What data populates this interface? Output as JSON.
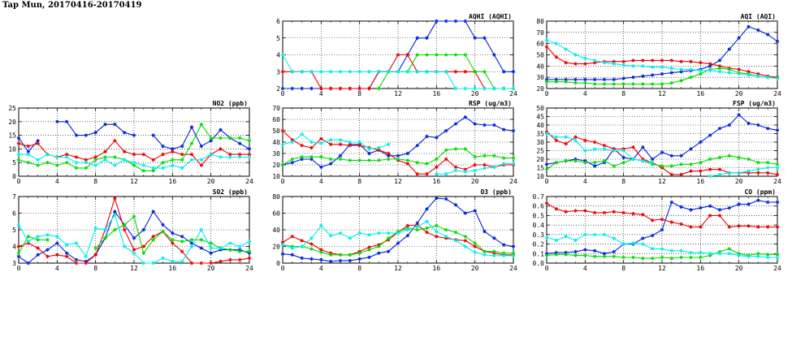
{
  "page": {
    "title": "Tap Mun, 20170416-20170419"
  },
  "colors": {
    "blue": "#0022dd",
    "red": "#ee0000",
    "green": "#00dd00",
    "cyan": "#00eeee",
    "grid": "#000000"
  },
  "chart_data": [
    {
      "id": "aqhi",
      "type": "line",
      "title": "AQHI (AQHI)",
      "xlim": [
        0,
        24
      ],
      "ylim": [
        2,
        6
      ],
      "xticks": [
        "0",
        "4",
        "8",
        "12",
        "16",
        "20",
        "24"
      ],
      "yticks": [
        "2",
        "3",
        "4",
        "5",
        "6"
      ],
      "grid": true,
      "series": [
        {
          "color": "blue",
          "values": [
            2,
            2,
            2,
            2,
            2,
            2,
            2,
            2,
            2,
            2,
            3,
            3,
            3,
            4,
            5,
            5,
            6,
            6,
            6,
            6,
            5,
            5,
            4,
            3,
            3
          ]
        },
        {
          "color": "red",
          "values": [
            3,
            3,
            3,
            3,
            2,
            2,
            2,
            2,
            2,
            2,
            3,
            3,
            4,
            4,
            3,
            3,
            3,
            3,
            3,
            3,
            3,
            2,
            2,
            2,
            2
          ]
        },
        {
          "color": "green",
          "values": [
            null,
            null,
            null,
            null,
            null,
            null,
            null,
            null,
            null,
            null,
            2,
            3,
            3,
            3,
            4,
            4,
            4,
            4,
            4,
            4,
            3,
            3,
            2,
            2,
            2
          ]
        },
        {
          "color": "cyan",
          "values": [
            4,
            3,
            3,
            3,
            3,
            3,
            3,
            3,
            3,
            3,
            3,
            3,
            3,
            3,
            3,
            3,
            3,
            3,
            2,
            2,
            2,
            2,
            2,
            2,
            2
          ]
        }
      ]
    },
    {
      "id": "aqi",
      "type": "line",
      "title": "AQI (AQI)",
      "xlim": [
        0,
        24
      ],
      "ylim": [
        20,
        80
      ],
      "xticks": [
        "0",
        "4",
        "8",
        "12",
        "16",
        "20",
        "24"
      ],
      "yticks": [
        "20",
        "30",
        "40",
        "50",
        "60",
        "70",
        "80"
      ],
      "grid": true,
      "series": [
        {
          "color": "blue",
          "values": [
            28,
            28,
            28,
            28,
            28,
            28,
            28,
            28,
            29,
            30,
            31,
            32,
            33,
            34,
            35,
            36,
            37,
            40,
            45,
            55,
            65,
            75,
            72,
            68,
            62
          ]
        },
        {
          "color": "red",
          "values": [
            57,
            48,
            43,
            42,
            42,
            43,
            44,
            44,
            44,
            45,
            45,
            45,
            45,
            45,
            44,
            44,
            43,
            42,
            40,
            38,
            37,
            35,
            33,
            31,
            30
          ]
        },
        {
          "color": "green",
          "values": [
            26,
            26,
            26,
            25,
            25,
            24,
            24,
            24,
            24,
            24,
            24,
            24,
            24,
            25,
            27,
            30,
            33,
            37,
            38,
            37,
            34,
            33,
            31,
            30,
            29
          ]
        },
        {
          "color": "cyan",
          "values": [
            63,
            60,
            55,
            50,
            47,
            45,
            43,
            42,
            41,
            40,
            40,
            39,
            39,
            38,
            37,
            37,
            36,
            36,
            35,
            34,
            33,
            32,
            31,
            30,
            29
          ]
        }
      ]
    },
    {
      "id": "no2",
      "type": "line",
      "title": "NO2 (ppb)",
      "xlim": [
        0,
        24
      ],
      "ylim": [
        0,
        25
      ],
      "xticks": [
        "0",
        "4",
        "8",
        "12",
        "16",
        "20",
        "24"
      ],
      "yticks": [
        "0",
        "5",
        "10",
        "15",
        "20",
        "25"
      ],
      "grid": true,
      "series": [
        {
          "color": "blue",
          "values": [
            14,
            9,
            13,
            null,
            20,
            20,
            15,
            15,
            16,
            19,
            19,
            16,
            15,
            null,
            15,
            11,
            10,
            11,
            18,
            11,
            13,
            17,
            14,
            12,
            10
          ]
        },
        {
          "color": "red",
          "values": [
            12,
            11,
            12,
            8,
            7,
            8,
            7,
            6,
            7,
            9,
            13,
            9,
            8,
            8,
            6,
            8,
            9,
            8,
            8,
            4,
            8,
            10,
            8,
            8,
            8
          ]
        },
        {
          "color": "green",
          "values": [
            6,
            5,
            4,
            5,
            4,
            5,
            3,
            3,
            6,
            7,
            7,
            6,
            4,
            2,
            2,
            5,
            6,
            6,
            12,
            19,
            14,
            14,
            14,
            14,
            13
          ]
        },
        {
          "color": "cyan",
          "values": [
            8,
            8,
            6,
            8,
            7,
            7,
            5,
            5,
            4,
            6,
            4,
            6,
            5,
            4,
            3,
            3,
            4,
            3,
            6,
            6,
            8,
            7,
            7,
            7,
            7
          ]
        }
      ]
    },
    {
      "id": "rsp",
      "type": "line",
      "title": "RSP (ug/m3)",
      "xlim": [
        0,
        24
      ],
      "ylim": [
        10,
        70
      ],
      "xticks": [
        "0",
        "4",
        "8",
        "12",
        "16",
        "20",
        "24"
      ],
      "yticks": [
        "10",
        "20",
        "30",
        "40",
        "50",
        "60",
        "70"
      ],
      "grid": true,
      "series": [
        {
          "color": "blue",
          "values": [
            20,
            22,
            25,
            25,
            18,
            21,
            28,
            38,
            38,
            30,
            33,
            28,
            28,
            30,
            37,
            45,
            44,
            50,
            56,
            62,
            56,
            55,
            55,
            51,
            50
          ]
        },
        {
          "color": "red",
          "values": [
            50,
            42,
            37,
            35,
            43,
            38,
            38,
            37,
            37,
            35,
            33,
            30,
            24,
            21,
            12,
            12,
            18,
            25,
            18,
            16,
            20,
            20,
            18,
            20,
            20
          ]
        },
        {
          "color": "green",
          "values": [
            20,
            25,
            27,
            27,
            27,
            25,
            25,
            24,
            24,
            24,
            24,
            25,
            25,
            24,
            22,
            21,
            25,
            33,
            34,
            34,
            27,
            28,
            28,
            26,
            26
          ]
        },
        {
          "color": "cyan",
          "values": [
            38,
            40,
            47,
            40,
            39,
            42,
            42,
            40,
            40,
            34,
            35,
            38,
            null,
            null,
            null,
            null,
            12,
            12,
            15,
            14,
            15,
            17,
            18,
            21,
            21
          ]
        }
      ]
    },
    {
      "id": "fsp",
      "type": "line",
      "title": "FSP (ug/m3)",
      "xlim": [
        0,
        24
      ],
      "ylim": [
        10,
        50
      ],
      "xticks": [
        "0",
        "4",
        "8",
        "12",
        "16",
        "20",
        "24"
      ],
      "yticks": [
        "10",
        "15",
        "20",
        "25",
        "30",
        "35",
        "40",
        "45",
        "50"
      ],
      "grid": true,
      "series": [
        {
          "color": "blue",
          "values": [
            17,
            18,
            19,
            20,
            19,
            16,
            18,
            26,
            21,
            20,
            27,
            20,
            24,
            22,
            22,
            26,
            30,
            34,
            38,
            40,
            46,
            41,
            40,
            38,
            37
          ]
        },
        {
          "color": "red",
          "values": [
            36,
            31,
            29,
            33,
            31,
            30,
            28,
            26,
            26,
            27,
            20,
            18,
            15,
            11,
            11,
            13,
            13,
            14,
            14,
            12,
            12,
            12,
            12,
            12,
            11
          ]
        },
        {
          "color": "green",
          "values": [
            14,
            18,
            19,
            19,
            18,
            18,
            19,
            16,
            18,
            20,
            19,
            17,
            16,
            16,
            17,
            17,
            18,
            20,
            21,
            22,
            21,
            20,
            18,
            18,
            17
          ]
        },
        {
          "color": "cyan",
          "values": [
            35,
            33,
            33,
            31,
            25,
            26,
            26,
            25,
            25,
            20,
            19,
            18,
            null,
            null,
            null,
            null,
            null,
            10,
            11,
            12,
            12,
            13,
            14,
            15,
            15
          ]
        }
      ]
    },
    {
      "id": "so2",
      "type": "line",
      "title": "SO2 (ppb)",
      "xlim": [
        0,
        24
      ],
      "ylim": [
        3,
        7
      ],
      "xticks": [
        "0",
        "4",
        "8",
        "12",
        "16",
        "20",
        "24"
      ],
      "yticks": [
        "3",
        "4",
        "5",
        "6",
        "7"
      ],
      "grid": true,
      "series": [
        {
          "color": "blue",
          "values": [
            3.4,
            3.0,
            3.5,
            3.8,
            4.2,
            3.6,
            3.2,
            3.1,
            3.5,
            4.5,
            6.1,
            5.3,
            4.5,
            5.0,
            6.1,
            5.3,
            4.8,
            4.6,
            4.2,
            3.9,
            3.6,
            3.8,
            3.8,
            3.8,
            3.6
          ]
        },
        {
          "color": "red",
          "values": [
            4.0,
            4.2,
            3.9,
            3.4,
            3.5,
            3.4,
            3.0,
            3.0,
            3.5,
            5.0,
            6.9,
            5.0,
            3.8,
            4.0,
            4.6,
            4.9,
            4.2,
            3.7,
            3.0,
            3.0,
            3.0,
            3.1,
            3.2,
            3.2,
            3.3
          ]
        },
        {
          "color": "green",
          "values": [
            3.6,
            4.6,
            4.4,
            4.4,
            null,
            null,
            null,
            null,
            3.9,
            4.5,
            5.0,
            5.3,
            5.8,
            3.6,
            4.4,
            4.9,
            4.4,
            4.3,
            4.4,
            4.4,
            4.2,
            3.9,
            3.8,
            3.7,
            3.7
          ]
        },
        {
          "color": "cyan",
          "values": [
            5.3,
            4.3,
            4.6,
            4.7,
            4.6,
            4.1,
            4.2,
            3.4,
            5.1,
            5.0,
            5.9,
            4.0,
            3.6,
            3.0,
            3.0,
            3.3,
            3.1,
            3.1,
            4.0,
            5.0,
            3.9,
            3.9,
            4.2,
            4.0,
            4.3
          ]
        }
      ]
    },
    {
      "id": "o3",
      "type": "line",
      "title": "O3 (ppb)",
      "xlim": [
        0,
        24
      ],
      "ylim": [
        0,
        80
      ],
      "xticks": [
        "0",
        "4",
        "8",
        "12",
        "16",
        "20",
        "24"
      ],
      "yticks": [
        "0",
        "20",
        "40",
        "60",
        "80"
      ],
      "grid": true,
      "series": [
        {
          "color": "blue",
          "values": [
            11,
            10,
            6,
            5,
            4,
            2,
            3,
            3,
            5,
            7,
            12,
            14,
            24,
            33,
            48,
            65,
            78,
            77,
            70,
            60,
            63,
            38,
            30,
            22,
            20
          ]
        },
        {
          "color": "red",
          "values": [
            25,
            32,
            27,
            23,
            16,
            12,
            10,
            10,
            14,
            19,
            22,
            28,
            37,
            45,
            46,
            37,
            32,
            30,
            28,
            27,
            20,
            14,
            12,
            10,
            10
          ]
        },
        {
          "color": "green",
          "values": [
            22,
            20,
            20,
            17,
            13,
            10,
            10,
            10,
            12,
            16,
            20,
            30,
            38,
            42,
            40,
            42,
            45,
            40,
            37,
            32,
            24,
            14,
            14,
            12,
            12
          ]
        },
        {
          "color": "cyan",
          "values": [
            22,
            18,
            20,
            30,
            45,
            33,
            36,
            30,
            36,
            34,
            36,
            36,
            36,
            40,
            44,
            50,
            38,
            32,
            27,
            20,
            13,
            10,
            9,
            9,
            9
          ]
        }
      ]
    },
    {
      "id": "co",
      "type": "line",
      "title": "CO (ppm)",
      "xlim": [
        0,
        24
      ],
      "ylim": [
        0,
        0.7
      ],
      "xticks": [
        "0",
        "4",
        "8",
        "12",
        "16",
        "20",
        "24"
      ],
      "yticks": [
        "0.0",
        "0.1",
        "0.2",
        "0.3",
        "0.4",
        "0.5",
        "0.6",
        "0.7"
      ],
      "grid": true,
      "series": [
        {
          "color": "blue",
          "values": [
            0.1,
            0.11,
            0.11,
            0.12,
            0.14,
            0.13,
            0.1,
            0.12,
            0.2,
            0.2,
            0.26,
            0.29,
            0.35,
            0.64,
            0.59,
            0.56,
            0.58,
            0.6,
            0.56,
            0.58,
            0.62,
            0.62,
            0.66,
            0.64,
            0.64
          ]
        },
        {
          "color": "red",
          "values": [
            0.63,
            0.57,
            0.54,
            0.55,
            0.55,
            0.53,
            0.53,
            0.54,
            0.53,
            0.52,
            0.51,
            0.45,
            0.46,
            0.43,
            0.41,
            0.38,
            0.38,
            0.5,
            0.5,
            0.38,
            0.39,
            0.39,
            0.38,
            0.38,
            0.38
          ]
        },
        {
          "color": "green",
          "values": [
            0.08,
            0.09,
            0.09,
            0.08,
            0.08,
            0.07,
            0.07,
            0.07,
            0.06,
            0.06,
            0.05,
            0.05,
            0.06,
            0.05,
            0.06,
            0.06,
            0.06,
            0.08,
            0.12,
            0.15,
            0.1,
            0.08,
            0.1,
            0.09,
            0.09
          ]
        },
        {
          "color": "cyan",
          "values": [
            0.27,
            0.24,
            0.28,
            0.24,
            0.3,
            0.3,
            0.3,
            0.26,
            0.2,
            0.21,
            0.2,
            0.15,
            0.15,
            0.13,
            0.13,
            0.11,
            0.11,
            0.1,
            0.1,
            0.1,
            0.08,
            0.07,
            0.07,
            0.06,
            0.06
          ]
        }
      ]
    }
  ]
}
